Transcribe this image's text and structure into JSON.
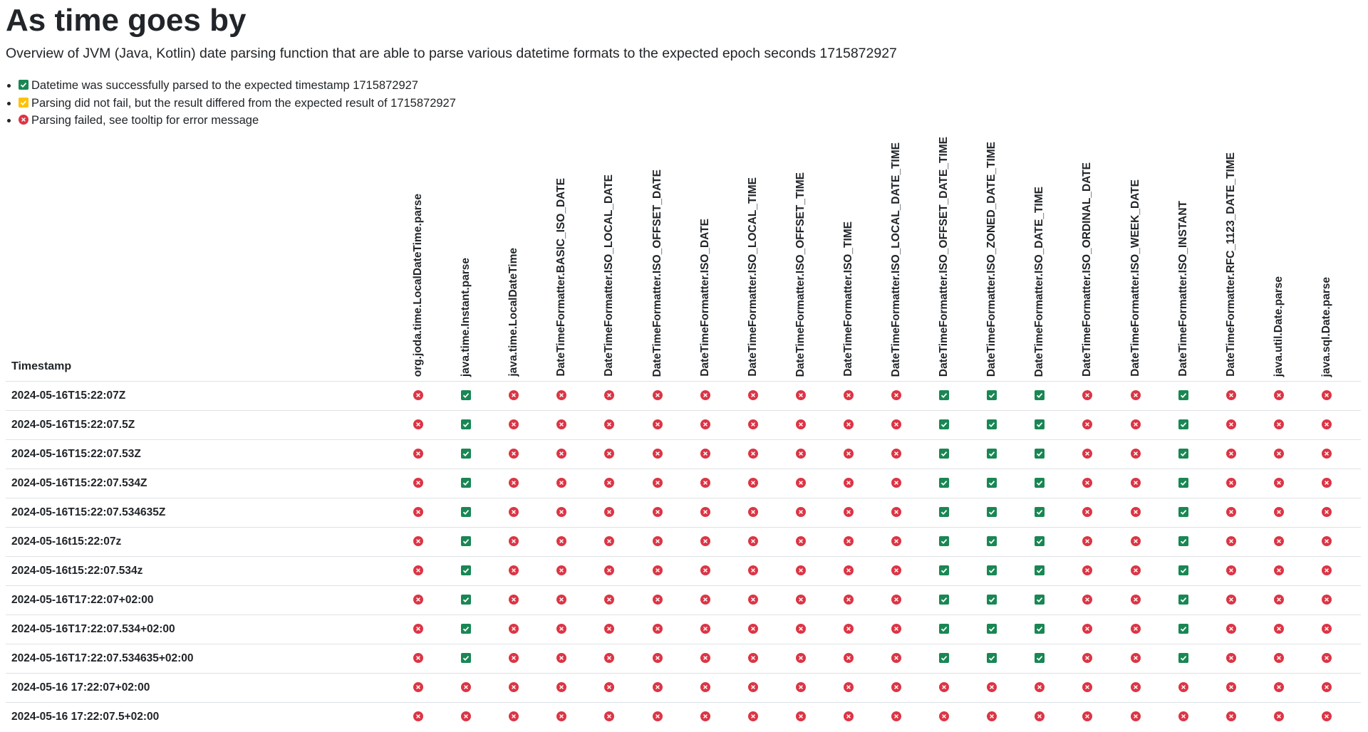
{
  "header": {
    "title": "As time goes by",
    "subtitle": "Overview of JVM (Java, Kotlin) date parsing function that are able to parse various datetime formats to the expected epoch seconds 1715872927"
  },
  "legend": [
    "Datetime was successfully parsed to the expected timestamp 1715872927",
    "Parsing did not fail, but the result differed from the expected result of 1715872927",
    "Parsing failed, see tooltip for error message"
  ],
  "table": {
    "corner": "Timestamp",
    "columns": [
      "org.joda.time.LocalDateTime.parse",
      "java.time.Instant.parse",
      "java.time.LocalDateTime",
      "DateTimeFormatter.BASIC_ISO_DATE",
      "DateTimeFormatter.ISO_LOCAL_DATE",
      "DateTimeFormatter.ISO_OFFSET_DATE",
      "DateTimeFormatter.ISO_DATE",
      "DateTimeFormatter.ISO_LOCAL_TIME",
      "DateTimeFormatter.ISO_OFFSET_TIME",
      "DateTimeFormatter.ISO_TIME",
      "DateTimeFormatter.ISO_LOCAL_DATE_TIME",
      "DateTimeFormatter.ISO_OFFSET_DATE_TIME",
      "DateTimeFormatter.ISO_ZONED_DATE_TIME",
      "DateTimeFormatter.ISO_DATE_TIME",
      "DateTimeFormatter.ISO_ORDINAL_DATE",
      "DateTimeFormatter.ISO_WEEK_DATE",
      "DateTimeFormatter.ISO_INSTANT",
      "DateTimeFormatter.RFC_1123_DATE_TIME",
      "java.util.Date.parse",
      "java.sql.Date.parse"
    ],
    "rows": [
      {
        "timestamp": "2024-05-16T15:22:07Z",
        "results": [
          false,
          true,
          false,
          false,
          false,
          false,
          false,
          false,
          false,
          false,
          false,
          true,
          true,
          true,
          false,
          false,
          true,
          false,
          false,
          false
        ]
      },
      {
        "timestamp": "2024-05-16T15:22:07.5Z",
        "results": [
          false,
          true,
          false,
          false,
          false,
          false,
          false,
          false,
          false,
          false,
          false,
          true,
          true,
          true,
          false,
          false,
          true,
          false,
          false,
          false
        ]
      },
      {
        "timestamp": "2024-05-16T15:22:07.53Z",
        "results": [
          false,
          true,
          false,
          false,
          false,
          false,
          false,
          false,
          false,
          false,
          false,
          true,
          true,
          true,
          false,
          false,
          true,
          false,
          false,
          false
        ]
      },
      {
        "timestamp": "2024-05-16T15:22:07.534Z",
        "results": [
          false,
          true,
          false,
          false,
          false,
          false,
          false,
          false,
          false,
          false,
          false,
          true,
          true,
          true,
          false,
          false,
          true,
          false,
          false,
          false
        ]
      },
      {
        "timestamp": "2024-05-16T15:22:07.534635Z",
        "results": [
          false,
          true,
          false,
          false,
          false,
          false,
          false,
          false,
          false,
          false,
          false,
          true,
          true,
          true,
          false,
          false,
          true,
          false,
          false,
          false
        ]
      },
      {
        "timestamp": "2024-05-16t15:22:07z",
        "results": [
          false,
          true,
          false,
          false,
          false,
          false,
          false,
          false,
          false,
          false,
          false,
          true,
          true,
          true,
          false,
          false,
          true,
          false,
          false,
          false
        ]
      },
      {
        "timestamp": "2024-05-16t15:22:07.534z",
        "results": [
          false,
          true,
          false,
          false,
          false,
          false,
          false,
          false,
          false,
          false,
          false,
          true,
          true,
          true,
          false,
          false,
          true,
          false,
          false,
          false
        ]
      },
      {
        "timestamp": "2024-05-16T17:22:07+02:00",
        "results": [
          false,
          true,
          false,
          false,
          false,
          false,
          false,
          false,
          false,
          false,
          false,
          true,
          true,
          true,
          false,
          false,
          true,
          false,
          false,
          false
        ]
      },
      {
        "timestamp": "2024-05-16T17:22:07.534+02:00",
        "results": [
          false,
          true,
          false,
          false,
          false,
          false,
          false,
          false,
          false,
          false,
          false,
          true,
          true,
          true,
          false,
          false,
          true,
          false,
          false,
          false
        ]
      },
      {
        "timestamp": "2024-05-16T17:22:07.534635+02:00",
        "results": [
          false,
          true,
          false,
          false,
          false,
          false,
          false,
          false,
          false,
          false,
          false,
          true,
          true,
          true,
          false,
          false,
          true,
          false,
          false,
          false
        ]
      },
      {
        "timestamp": "2024-05-16 17:22:07+02:00",
        "results": [
          false,
          false,
          false,
          false,
          false,
          false,
          false,
          false,
          false,
          false,
          false,
          false,
          false,
          false,
          false,
          false,
          false,
          false,
          false,
          false
        ]
      },
      {
        "timestamp": "2024-05-16 17:22:07.5+02:00",
        "results": [
          false,
          false,
          false,
          false,
          false,
          false,
          false,
          false,
          false,
          false,
          false,
          false,
          false,
          false,
          false,
          false,
          false,
          false,
          false,
          false
        ]
      }
    ]
  }
}
